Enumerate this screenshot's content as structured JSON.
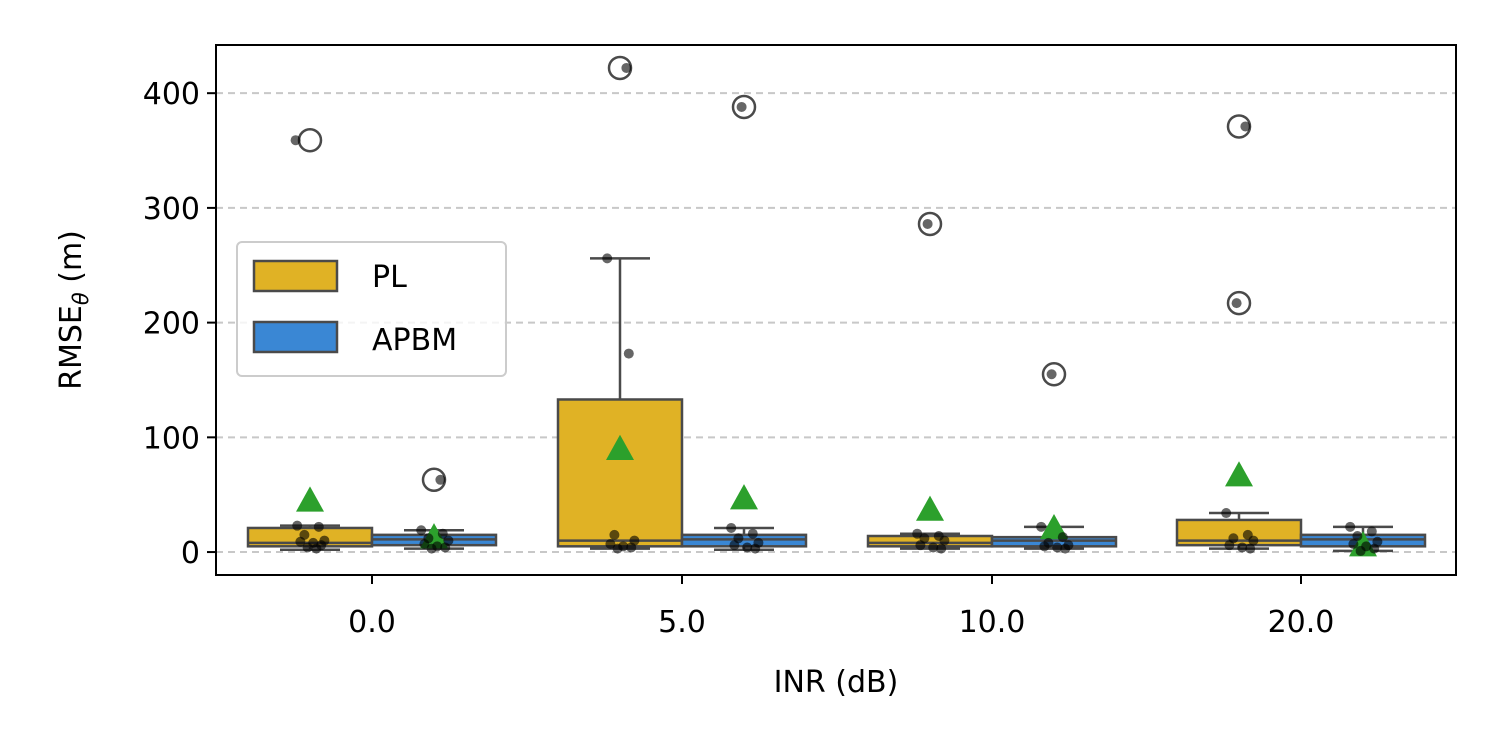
{
  "chart_data": {
    "type": "box",
    "xlabel": "INR (dB)",
    "ylabel_main": "RMSE",
    "ylabel_sub": "θ",
    "ylabel_unit": " (m)",
    "categories": [
      "0.0",
      "5.0",
      "10.0",
      "20.0"
    ],
    "ylim": [
      -20,
      442
    ],
    "yticks": [
      0,
      100,
      200,
      300,
      400
    ],
    "grid_y": true,
    "legend_position": "center-left",
    "series": [
      {
        "name": "PL",
        "color": "#e0b225",
        "boxes": [
          {
            "whislo": 2,
            "q1": 5,
            "med": 8,
            "q3": 21,
            "whishi": 23,
            "mean": 45,
            "fliers": [
              359
            ],
            "points": [
              23,
              22,
              15,
              10,
              9,
              8,
              6,
              4,
              3,
              359
            ]
          },
          {
            "whislo": 3,
            "q1": 5,
            "med": 10,
            "q3": 133,
            "whishi": 256,
            "mean": 90,
            "fliers": [
              422
            ],
            "points": [
              256,
              173,
              15,
              10,
              7,
              5,
              4,
              3,
              422
            ]
          },
          {
            "whislo": 3,
            "q1": 5,
            "med": 8,
            "q3": 14,
            "whishi": 16,
            "mean": 37,
            "fliers": [
              286
            ],
            "points": [
              16,
              14,
              12,
              10,
              6,
              4,
              3,
              286
            ]
          },
          {
            "whislo": 3,
            "q1": 6,
            "med": 10,
            "q3": 28,
            "whishi": 34,
            "mean": 67,
            "fliers": [
              371,
              217
            ],
            "points": [
              34,
              15,
              12,
              10,
              6,
              4,
              3,
              217,
              371
            ]
          }
        ]
      },
      {
        "name": "APBM",
        "color": "#3a87d4",
        "boxes": [
          {
            "whislo": 3,
            "q1": 6,
            "med": 11,
            "q3": 15,
            "whishi": 19,
            "mean": 13,
            "fliers": [
              63
            ],
            "points": [
              19,
              16,
              12,
              10,
              7,
              5,
              4,
              3,
              63
            ]
          },
          {
            "whislo": 2,
            "q1": 5,
            "med": 11,
            "q3": 15,
            "whishi": 21,
            "mean": 47,
            "fliers": [
              388
            ],
            "points": [
              21,
              16,
              12,
              8,
              6,
              4,
              3,
              388
            ]
          },
          {
            "whislo": 3,
            "q1": 5,
            "med": 10,
            "q3": 13,
            "whishi": 22,
            "mean": 21,
            "fliers": [
              155
            ],
            "points": [
              22,
              13,
              8,
              6,
              5,
              4,
              3,
              155
            ]
          },
          {
            "whislo": 1,
            "q1": 5,
            "med": 11,
            "q3": 15,
            "whishi": 22,
            "mean": 6,
            "fliers": [],
            "points": [
              22,
              18,
              14,
              9,
              7,
              5,
              3,
              1
            ]
          }
        ]
      }
    ]
  }
}
